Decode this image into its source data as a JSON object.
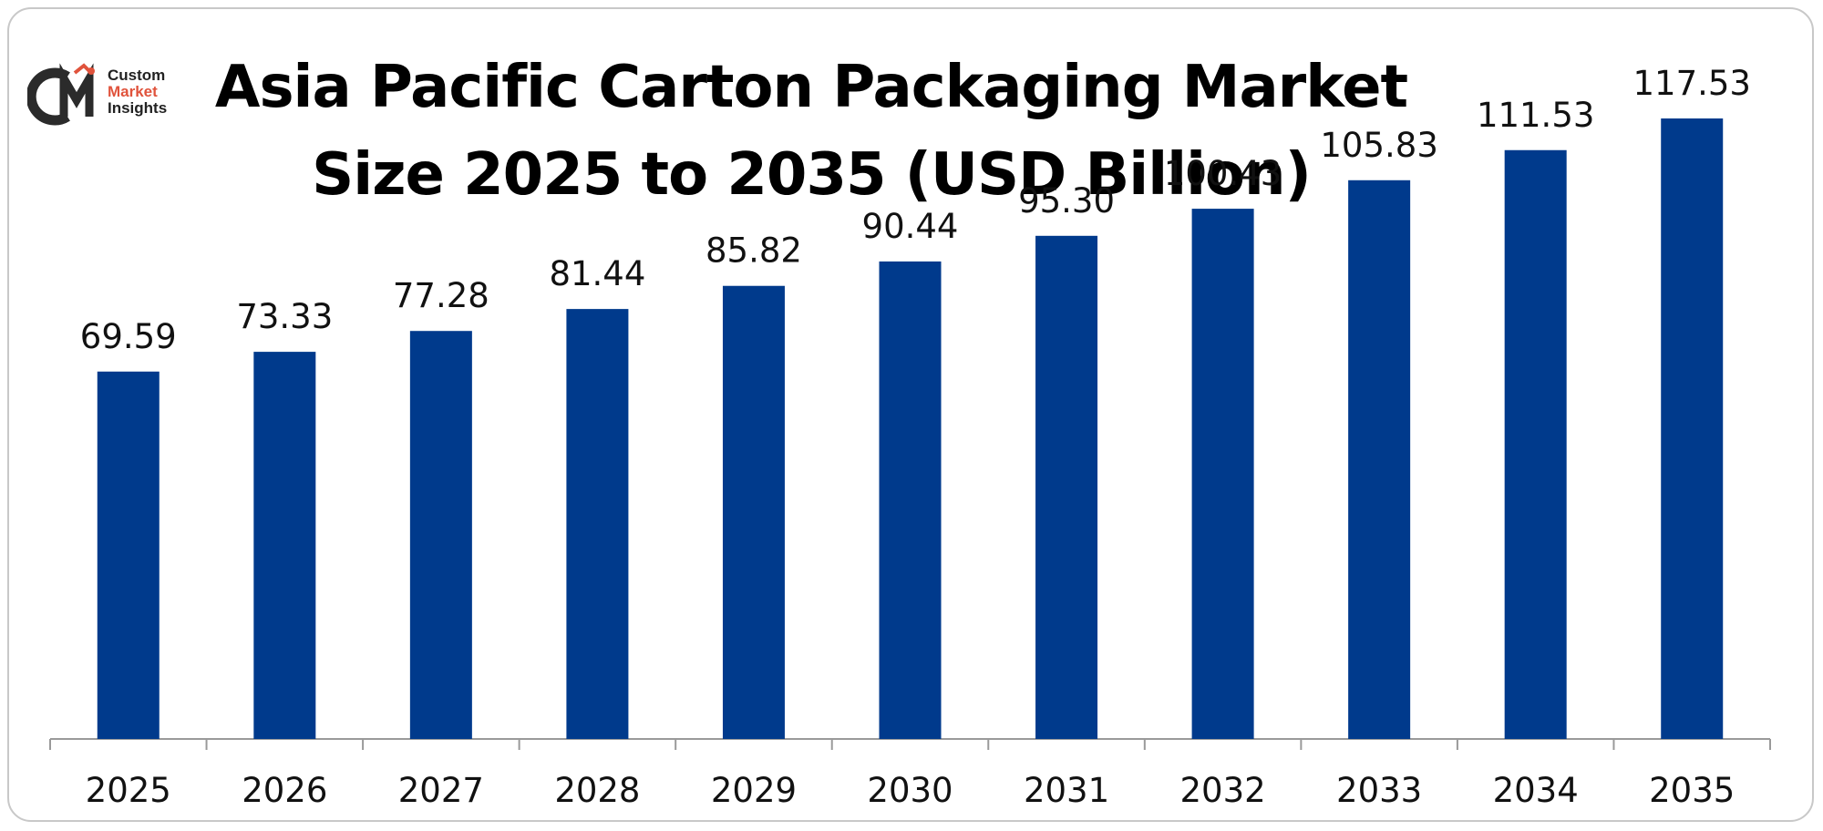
{
  "brand": {
    "line1": "Custom",
    "line2": "Market",
    "line3": "Insights",
    "colors": {
      "dark": "#2b2b2b",
      "accent": "#e0533c"
    }
  },
  "chart_data": {
    "type": "bar",
    "title": "Asia Pacific Carton Packaging Market Size 2025 to 2035 (USD Billion)",
    "categories": [
      "2025",
      "2026",
      "2027",
      "2028",
      "2029",
      "2030",
      "2031",
      "2032",
      "2033",
      "2034",
      "2035"
    ],
    "values": [
      69.59,
      73.33,
      77.28,
      81.44,
      85.82,
      90.44,
      95.3,
      100.43,
      105.83,
      111.53,
      117.53
    ],
    "value_labels": [
      "69.59",
      "73.33",
      "77.28",
      "81.44",
      "85.82",
      "90.44",
      "95.30",
      "100.43",
      "105.83",
      "111.53",
      "117.53"
    ],
    "xlabel": "",
    "ylabel": "",
    "ylim": [
      0,
      120
    ],
    "grid": false,
    "legend": "none",
    "bar_color": "#003a8c",
    "axis_color": "#9a9a9a"
  }
}
